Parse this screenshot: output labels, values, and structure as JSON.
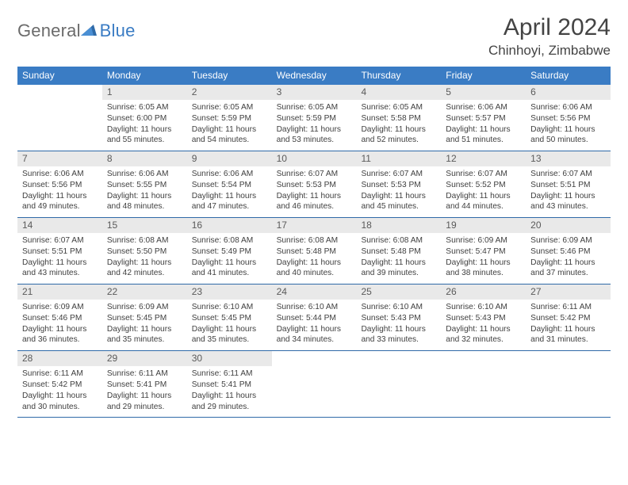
{
  "brand": {
    "part1": "General",
    "part2": "Blue"
  },
  "title": "April 2024",
  "location": "Chinhoyi, Zimbabwe",
  "colors": {
    "header_bg": "#3a7cc4",
    "header_text": "#ffffff",
    "daynum_bg": "#e9e9e9",
    "daynum_text": "#5a5a5a",
    "body_text": "#3f3f3f",
    "week_border": "#2f6aa8",
    "logo_gray": "#6b6b6b",
    "logo_blue": "#3a7cc4"
  },
  "fonts": {
    "title_size": 30,
    "location_size": 17,
    "weekday_size": 12,
    "daynum_size": 12,
    "body_size": 10.2
  },
  "weekdays": [
    "Sunday",
    "Monday",
    "Tuesday",
    "Wednesday",
    "Thursday",
    "Friday",
    "Saturday"
  ],
  "weeks": [
    [
      {
        "n": "",
        "sunrise": "",
        "sunset": "",
        "daylight": ""
      },
      {
        "n": "1",
        "sunrise": "Sunrise: 6:05 AM",
        "sunset": "Sunset: 6:00 PM",
        "daylight": "Daylight: 11 hours and 55 minutes."
      },
      {
        "n": "2",
        "sunrise": "Sunrise: 6:05 AM",
        "sunset": "Sunset: 5:59 PM",
        "daylight": "Daylight: 11 hours and 54 minutes."
      },
      {
        "n": "3",
        "sunrise": "Sunrise: 6:05 AM",
        "sunset": "Sunset: 5:59 PM",
        "daylight": "Daylight: 11 hours and 53 minutes."
      },
      {
        "n": "4",
        "sunrise": "Sunrise: 6:05 AM",
        "sunset": "Sunset: 5:58 PM",
        "daylight": "Daylight: 11 hours and 52 minutes."
      },
      {
        "n": "5",
        "sunrise": "Sunrise: 6:06 AM",
        "sunset": "Sunset: 5:57 PM",
        "daylight": "Daylight: 11 hours and 51 minutes."
      },
      {
        "n": "6",
        "sunrise": "Sunrise: 6:06 AM",
        "sunset": "Sunset: 5:56 PM",
        "daylight": "Daylight: 11 hours and 50 minutes."
      }
    ],
    [
      {
        "n": "7",
        "sunrise": "Sunrise: 6:06 AM",
        "sunset": "Sunset: 5:56 PM",
        "daylight": "Daylight: 11 hours and 49 minutes."
      },
      {
        "n": "8",
        "sunrise": "Sunrise: 6:06 AM",
        "sunset": "Sunset: 5:55 PM",
        "daylight": "Daylight: 11 hours and 48 minutes."
      },
      {
        "n": "9",
        "sunrise": "Sunrise: 6:06 AM",
        "sunset": "Sunset: 5:54 PM",
        "daylight": "Daylight: 11 hours and 47 minutes."
      },
      {
        "n": "10",
        "sunrise": "Sunrise: 6:07 AM",
        "sunset": "Sunset: 5:53 PM",
        "daylight": "Daylight: 11 hours and 46 minutes."
      },
      {
        "n": "11",
        "sunrise": "Sunrise: 6:07 AM",
        "sunset": "Sunset: 5:53 PM",
        "daylight": "Daylight: 11 hours and 45 minutes."
      },
      {
        "n": "12",
        "sunrise": "Sunrise: 6:07 AM",
        "sunset": "Sunset: 5:52 PM",
        "daylight": "Daylight: 11 hours and 44 minutes."
      },
      {
        "n": "13",
        "sunrise": "Sunrise: 6:07 AM",
        "sunset": "Sunset: 5:51 PM",
        "daylight": "Daylight: 11 hours and 43 minutes."
      }
    ],
    [
      {
        "n": "14",
        "sunrise": "Sunrise: 6:07 AM",
        "sunset": "Sunset: 5:51 PM",
        "daylight": "Daylight: 11 hours and 43 minutes."
      },
      {
        "n": "15",
        "sunrise": "Sunrise: 6:08 AM",
        "sunset": "Sunset: 5:50 PM",
        "daylight": "Daylight: 11 hours and 42 minutes."
      },
      {
        "n": "16",
        "sunrise": "Sunrise: 6:08 AM",
        "sunset": "Sunset: 5:49 PM",
        "daylight": "Daylight: 11 hours and 41 minutes."
      },
      {
        "n": "17",
        "sunrise": "Sunrise: 6:08 AM",
        "sunset": "Sunset: 5:48 PM",
        "daylight": "Daylight: 11 hours and 40 minutes."
      },
      {
        "n": "18",
        "sunrise": "Sunrise: 6:08 AM",
        "sunset": "Sunset: 5:48 PM",
        "daylight": "Daylight: 11 hours and 39 minutes."
      },
      {
        "n": "19",
        "sunrise": "Sunrise: 6:09 AM",
        "sunset": "Sunset: 5:47 PM",
        "daylight": "Daylight: 11 hours and 38 minutes."
      },
      {
        "n": "20",
        "sunrise": "Sunrise: 6:09 AM",
        "sunset": "Sunset: 5:46 PM",
        "daylight": "Daylight: 11 hours and 37 minutes."
      }
    ],
    [
      {
        "n": "21",
        "sunrise": "Sunrise: 6:09 AM",
        "sunset": "Sunset: 5:46 PM",
        "daylight": "Daylight: 11 hours and 36 minutes."
      },
      {
        "n": "22",
        "sunrise": "Sunrise: 6:09 AM",
        "sunset": "Sunset: 5:45 PM",
        "daylight": "Daylight: 11 hours and 35 minutes."
      },
      {
        "n": "23",
        "sunrise": "Sunrise: 6:10 AM",
        "sunset": "Sunset: 5:45 PM",
        "daylight": "Daylight: 11 hours and 35 minutes."
      },
      {
        "n": "24",
        "sunrise": "Sunrise: 6:10 AM",
        "sunset": "Sunset: 5:44 PM",
        "daylight": "Daylight: 11 hours and 34 minutes."
      },
      {
        "n": "25",
        "sunrise": "Sunrise: 6:10 AM",
        "sunset": "Sunset: 5:43 PM",
        "daylight": "Daylight: 11 hours and 33 minutes."
      },
      {
        "n": "26",
        "sunrise": "Sunrise: 6:10 AM",
        "sunset": "Sunset: 5:43 PM",
        "daylight": "Daylight: 11 hours and 32 minutes."
      },
      {
        "n": "27",
        "sunrise": "Sunrise: 6:11 AM",
        "sunset": "Sunset: 5:42 PM",
        "daylight": "Daylight: 11 hours and 31 minutes."
      }
    ],
    [
      {
        "n": "28",
        "sunrise": "Sunrise: 6:11 AM",
        "sunset": "Sunset: 5:42 PM",
        "daylight": "Daylight: 11 hours and 30 minutes."
      },
      {
        "n": "29",
        "sunrise": "Sunrise: 6:11 AM",
        "sunset": "Sunset: 5:41 PM",
        "daylight": "Daylight: 11 hours and 29 minutes."
      },
      {
        "n": "30",
        "sunrise": "Sunrise: 6:11 AM",
        "sunset": "Sunset: 5:41 PM",
        "daylight": "Daylight: 11 hours and 29 minutes."
      },
      {
        "n": "",
        "sunrise": "",
        "sunset": "",
        "daylight": ""
      },
      {
        "n": "",
        "sunrise": "",
        "sunset": "",
        "daylight": ""
      },
      {
        "n": "",
        "sunrise": "",
        "sunset": "",
        "daylight": ""
      },
      {
        "n": "",
        "sunrise": "",
        "sunset": "",
        "daylight": ""
      }
    ]
  ]
}
